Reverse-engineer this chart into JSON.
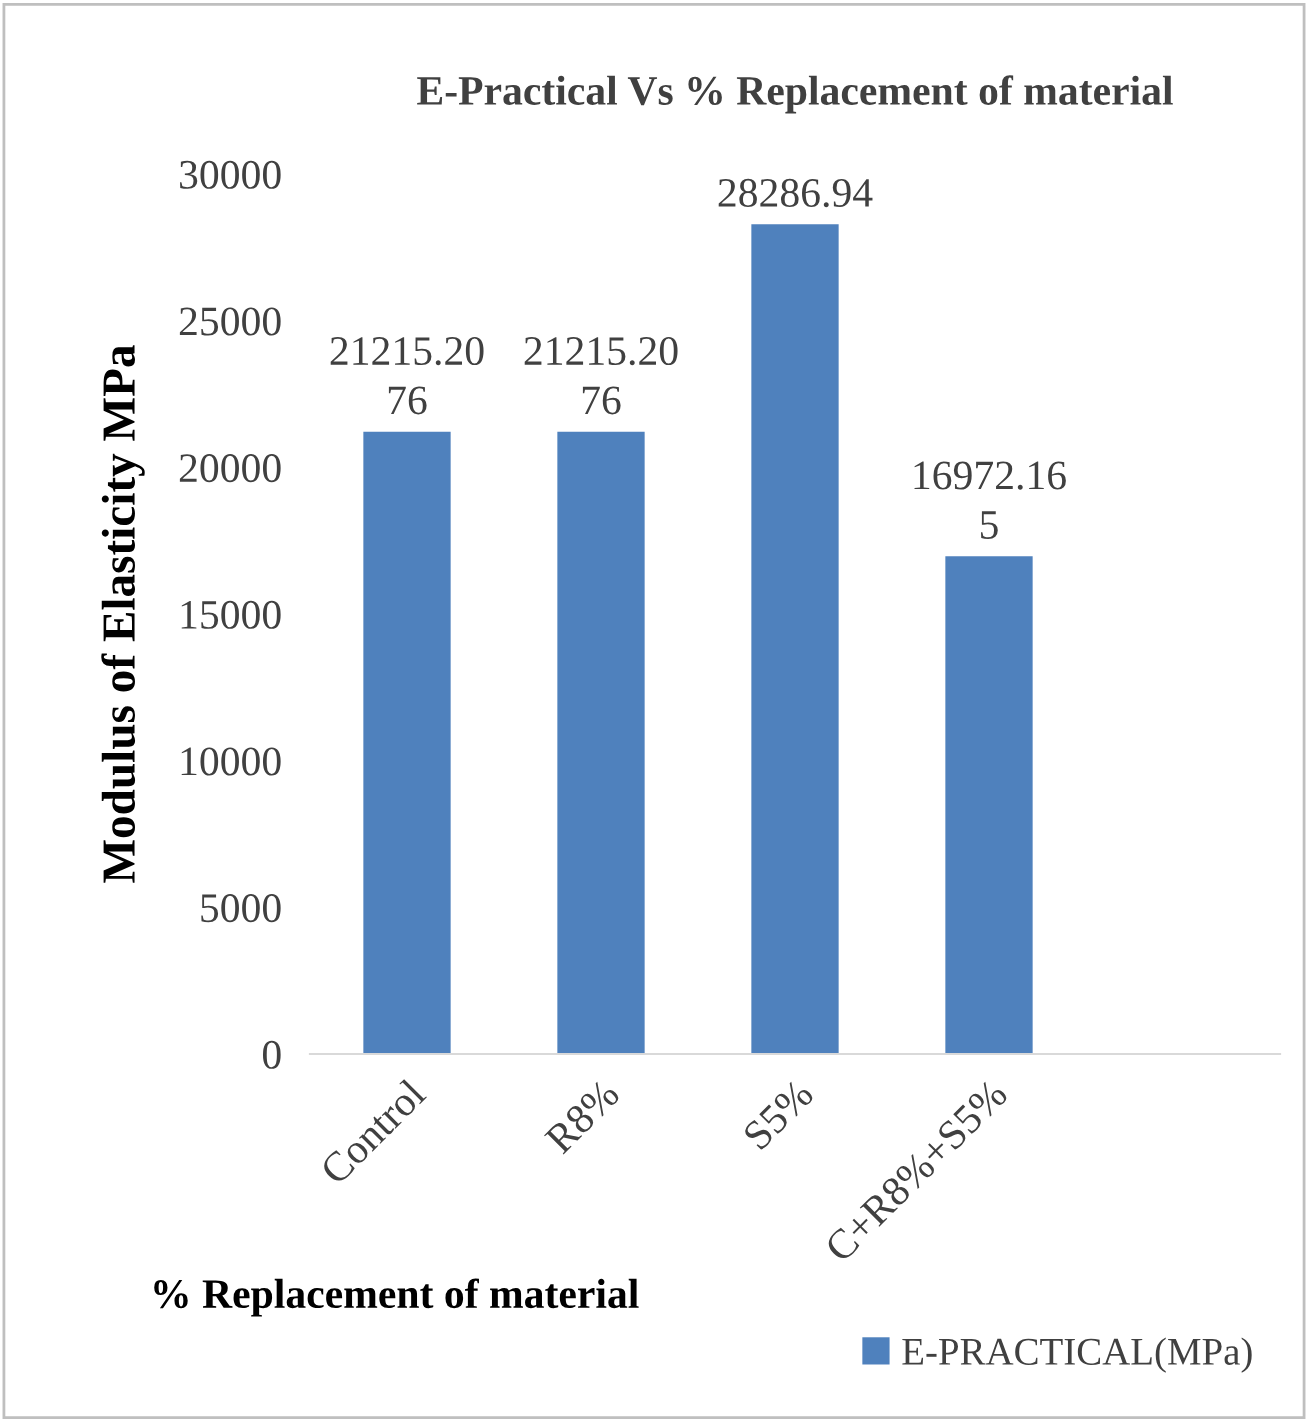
{
  "chart_data": {
    "type": "bar",
    "title": "E-Practical Vs % Replacement of material",
    "xlabel": "% Replacement of material",
    "ylabel": "Modulus of Elasticity MPa",
    "categories": [
      "Control",
      "R8%",
      "S5%",
      "C+R8%+S5%",
      null
    ],
    "series": [
      {
        "name": "E-PRACTICAL(MPa)",
        "color": "#4f81bd",
        "values": [
          21215.2076,
          21215.2076,
          28286.94,
          16972.165,
          null
        ],
        "value_labels": [
          "21215.2076",
          "21215.2076",
          "28286.94",
          "16972.165",
          null
        ]
      }
    ],
    "ylim": [
      0,
      30000
    ],
    "yticks": [
      0,
      5000,
      10000,
      15000,
      20000,
      25000,
      30000
    ],
    "grid": false,
    "legend": "bottom right"
  }
}
